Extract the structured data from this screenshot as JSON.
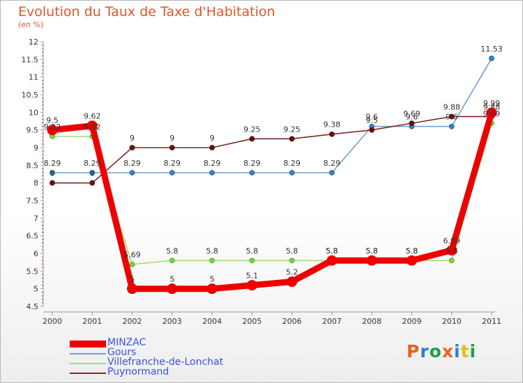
{
  "title": "Evolution du Taux de Taxe d'Habitation",
  "subtitle": "(en %)",
  "logo": {
    "text": "Proxiti",
    "colors": [
      "#e8621b",
      "#2a7fd1",
      "#1c9e49",
      "#e8621b",
      "#2a7fd1",
      "#e0bf1a",
      "#1c9e49"
    ]
  },
  "chart_data": {
    "type": "line",
    "x": [
      "2000",
      "2001",
      "2002",
      "2003",
      "2004",
      "2005",
      "2006",
      "2007",
      "2008",
      "2009",
      "2010",
      "2011"
    ],
    "ylim": [
      4.5,
      12
    ],
    "yticks": [
      "4.5",
      "5",
      "5.5",
      "6",
      "6.5",
      "7",
      "7.5",
      "8",
      "8.5",
      "9",
      "9.5",
      "10",
      "10.5",
      "11",
      "11.5",
      "12"
    ],
    "grid": false,
    "legend_position": "bottom-left",
    "series": [
      {
        "name": "MINZAC",
        "color": "#ee0000",
        "values": [
          9.5,
          9.62,
          5,
          5,
          5,
          5.1,
          5.2,
          5.8,
          5.8,
          5.8,
          6.09,
          9.99
        ],
        "labels": [
          "9.5",
          "9.62",
          "5",
          "5",
          "5",
          "5.1",
          "5.2",
          "5.8",
          "5.8",
          "5.8",
          "6.09",
          "9.99"
        ]
      },
      {
        "name": "Gours",
        "color": "#6f9fcf",
        "values": [
          8.29,
          8.29,
          8.29,
          8.29,
          8.29,
          8.29,
          8.29,
          8.29,
          9.6,
          9.6,
          9.6,
          11.53
        ],
        "labels": [
          "8.29",
          "8.29",
          "8.29",
          "8.29",
          "8.29",
          "8.29",
          "8.29",
          "8.29",
          "9.6",
          "9.6",
          "9.6",
          "11.53"
        ]
      },
      {
        "name": "Villefranche-de-Lonchat",
        "color": "#a8dc78",
        "values": [
          9.32,
          9.32,
          5.69,
          5.8,
          5.8,
          5.8,
          5.8,
          5.8,
          5.8,
          5.8,
          5.8,
          9.69
        ],
        "labels": [
          "9.32",
          "9.32",
          "5.69",
          "5.8",
          "5.8",
          "5.8",
          "5.8",
          "5.8",
          "5.8",
          "5.8",
          "5.8",
          "9.69"
        ]
      },
      {
        "name": "Puynormand",
        "color": "#7a2a2a",
        "values": [
          8,
          8,
          9,
          9,
          9,
          9.25,
          9.25,
          9.38,
          9.5,
          9.69,
          9.88,
          9.88
        ],
        "labels": [
          "8",
          "8",
          "9",
          "9",
          "9",
          "9.25",
          "9.25",
          "9.38",
          "9.5",
          "9.69",
          "9.88",
          "9.88"
        ]
      }
    ]
  }
}
